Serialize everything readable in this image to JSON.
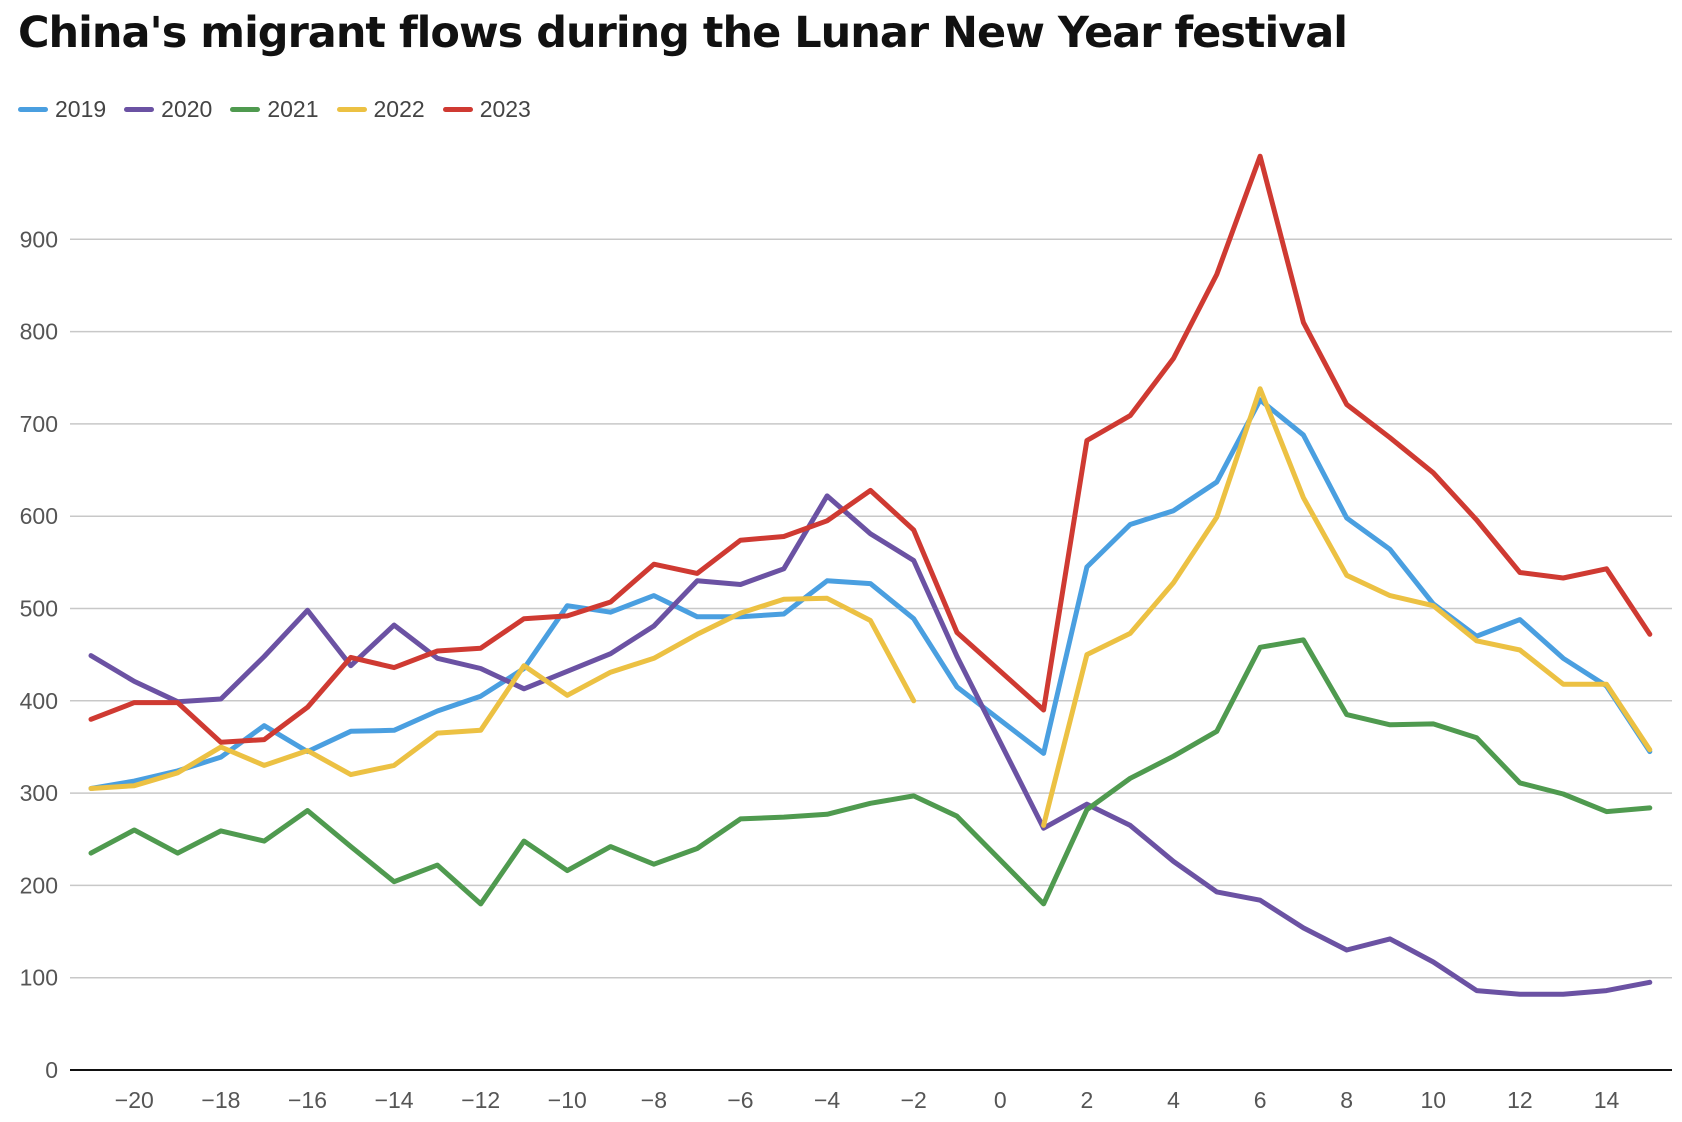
{
  "title": "China's migrant flows during the Lunar New Year festival",
  "chart_data": {
    "type": "line",
    "title": "China's migrant flows during the Lunar New Year festival",
    "xlabel": "",
    "ylabel": "",
    "xlim": [
      -21,
      15
    ],
    "ylim": [
      0,
      1000
    ],
    "grid": true,
    "legend_position": "top-left",
    "x_ticks": [
      -20,
      -18,
      -16,
      -14,
      -12,
      -10,
      -8,
      -6,
      -4,
      -2,
      0,
      2,
      4,
      6,
      8,
      10,
      12,
      14
    ],
    "x_tick_labels": [
      "−20",
      "−18",
      "−16",
      "−14",
      "−12",
      "−10",
      "−8",
      "−6",
      "−4",
      "−2",
      "0",
      "2",
      "4",
      "6",
      "8",
      "10",
      "12",
      "14"
    ],
    "y_ticks": [
      0,
      100,
      200,
      300,
      400,
      500,
      600,
      700,
      800,
      900
    ],
    "y_tick_labels": [
      "0",
      "100",
      "200",
      "300",
      "400",
      "500",
      "600",
      "700",
      "800",
      "900"
    ],
    "series": [
      {
        "name": "2019",
        "color": "#4a9fe0",
        "points": [
          [
            -21,
            305
          ],
          [
            -20,
            313
          ],
          [
            -19,
            324
          ],
          [
            -18,
            339
          ],
          [
            -17,
            373
          ],
          [
            -16,
            345
          ],
          [
            -15,
            367
          ],
          [
            -14,
            368
          ],
          [
            -13,
            389
          ],
          [
            -12,
            405
          ],
          [
            -11,
            435
          ],
          [
            -10,
            503
          ],
          [
            -9,
            496
          ],
          [
            -8,
            514
          ],
          [
            -7,
            491
          ],
          [
            -6,
            491
          ],
          [
            -5,
            494
          ],
          [
            -4,
            530
          ],
          [
            -3,
            527
          ],
          [
            -2,
            489
          ],
          [
            -1,
            415
          ],
          [
            1,
            343
          ],
          [
            2,
            545
          ],
          [
            3,
            591
          ],
          [
            4,
            606
          ],
          [
            5,
            637
          ],
          [
            6,
            726
          ],
          [
            7,
            688
          ],
          [
            8,
            598
          ],
          [
            9,
            564
          ],
          [
            10,
            505
          ],
          [
            11,
            470
          ],
          [
            12,
            488
          ],
          [
            13,
            446
          ],
          [
            14,
            416
          ],
          [
            15,
            345
          ]
        ]
      },
      {
        "name": "2020",
        "color": "#6b52a3",
        "points": [
          [
            -21,
            449
          ],
          [
            -20,
            421
          ],
          [
            -19,
            399
          ],
          [
            -18,
            402
          ],
          [
            -17,
            448
          ],
          [
            -16,
            498
          ],
          [
            -15,
            438
          ],
          [
            -14,
            482
          ],
          [
            -13,
            446
          ],
          [
            -12,
            435
          ],
          [
            -11,
            413
          ],
          [
            -10,
            432
          ],
          [
            -9,
            451
          ],
          [
            -8,
            481
          ],
          [
            -7,
            530
          ],
          [
            -6,
            526
          ],
          [
            -5,
            543
          ],
          [
            -4,
            622
          ],
          [
            -3,
            581
          ],
          [
            -2,
            552
          ],
          [
            -1,
            448
          ],
          [
            1,
            262
          ],
          [
            2,
            288
          ],
          [
            3,
            265
          ],
          [
            4,
            226
          ],
          [
            5,
            193
          ],
          [
            6,
            184
          ],
          [
            7,
            154
          ],
          [
            8,
            130
          ],
          [
            9,
            142
          ],
          [
            10,
            117
          ],
          [
            11,
            86
          ],
          [
            12,
            82
          ],
          [
            13,
            82
          ],
          [
            14,
            86
          ],
          [
            15,
            95
          ]
        ]
      },
      {
        "name": "2021",
        "color": "#4f9a4f",
        "points": [
          [
            -21,
            235
          ],
          [
            -20,
            260
          ],
          [
            -19,
            235
          ],
          [
            -18,
            259
          ],
          [
            -17,
            248
          ],
          [
            -16,
            281
          ],
          [
            -15,
            242
          ],
          [
            -14,
            204
          ],
          [
            -13,
            222
          ],
          [
            -12,
            180
          ],
          [
            -11,
            248
          ],
          [
            -10,
            216
          ],
          [
            -9,
            242
          ],
          [
            -8,
            223
          ],
          [
            -7,
            240
          ],
          [
            -6,
            272
          ],
          [
            -5,
            274
          ],
          [
            -4,
            277
          ],
          [
            -3,
            289
          ],
          [
            -2,
            297
          ],
          [
            -1,
            275
          ],
          [
            1,
            180
          ],
          [
            2,
            282
          ],
          [
            3,
            316
          ],
          [
            4,
            340
          ],
          [
            5,
            367
          ],
          [
            6,
            458
          ],
          [
            7,
            466
          ],
          [
            8,
            385
          ],
          [
            9,
            374
          ],
          [
            10,
            375
          ],
          [
            11,
            360
          ],
          [
            12,
            311
          ],
          [
            13,
            299
          ],
          [
            14,
            280
          ],
          [
            15,
            284
          ]
        ]
      },
      {
        "name": "2022",
        "color": "#ecc143",
        "segments": [
          [
            [
              -21,
              305
            ],
            [
              -20,
              308
            ],
            [
              -19,
              322
            ],
            [
              -18,
              350
            ],
            [
              -17,
              330
            ],
            [
              -16,
              346
            ],
            [
              -15,
              320
            ],
            [
              -14,
              330
            ],
            [
              -13,
              365
            ],
            [
              -12,
              368
            ],
            [
              -11,
              438
            ],
            [
              -10,
              406
            ],
            [
              -9,
              431
            ],
            [
              -8,
              446
            ],
            [
              -7,
              472
            ],
            [
              -6,
              495
            ],
            [
              -5,
              510
            ],
            [
              -4,
              511
            ],
            [
              -3,
              487
            ],
            [
              -2,
              400
            ]
          ],
          [
            [
              1,
              265
            ],
            [
              2,
              450
            ],
            [
              3,
              473
            ],
            [
              4,
              528
            ],
            [
              5,
              599
            ],
            [
              6,
              738
            ],
            [
              7,
              620
            ],
            [
              8,
              536
            ],
            [
              9,
              514
            ],
            [
              10,
              503
            ],
            [
              11,
              465
            ],
            [
              12,
              455
            ],
            [
              13,
              418
            ],
            [
              14,
              418
            ],
            [
              15,
              347
            ]
          ]
        ]
      },
      {
        "name": "2023",
        "color": "#cf3a32",
        "points": [
          [
            -21,
            380
          ],
          [
            -20,
            398
          ],
          [
            -19,
            398
          ],
          [
            -18,
            355
          ],
          [
            -17,
            358
          ],
          [
            -16,
            393
          ],
          [
            -15,
            447
          ],
          [
            -14,
            436
          ],
          [
            -13,
            454
          ],
          [
            -12,
            457
          ],
          [
            -11,
            489
          ],
          [
            -10,
            492
          ],
          [
            -9,
            507
          ],
          [
            -8,
            548
          ],
          [
            -7,
            538
          ],
          [
            -6,
            574
          ],
          [
            -5,
            578
          ],
          [
            -4,
            595
          ],
          [
            -3,
            628
          ],
          [
            -2,
            585
          ],
          [
            -1,
            474
          ],
          [
            1,
            390
          ],
          [
            2,
            682
          ],
          [
            3,
            709
          ],
          [
            4,
            771
          ],
          [
            5,
            862
          ],
          [
            6,
            990
          ],
          [
            7,
            810
          ],
          [
            8,
            721
          ],
          [
            9,
            685
          ],
          [
            10,
            647
          ],
          [
            11,
            596
          ],
          [
            12,
            539
          ],
          [
            13,
            533
          ],
          [
            14,
            543
          ],
          [
            15,
            472
          ]
        ]
      }
    ]
  }
}
